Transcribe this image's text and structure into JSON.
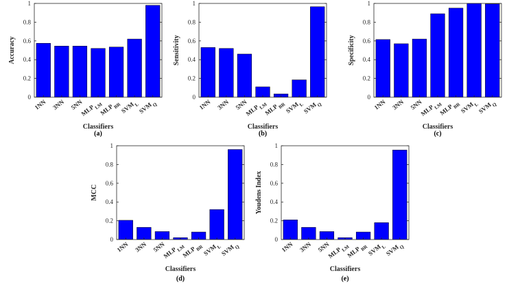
{
  "chart_data": [
    {
      "type": "bar",
      "id": "a",
      "categories": [
        {
          "main": "1NN",
          "sub": ""
        },
        {
          "main": "3NN",
          "sub": ""
        },
        {
          "main": "5NN",
          "sub": ""
        },
        {
          "main": "MLP",
          "sub": "LM"
        },
        {
          "main": "MLP",
          "sub": "BR"
        },
        {
          "main": "SVM",
          "sub": "L"
        },
        {
          "main": "SVM",
          "sub": "Q"
        }
      ],
      "values": [
        0.575,
        0.545,
        0.545,
        0.52,
        0.535,
        0.62,
        0.98
      ],
      "xlabel": "Classifiers",
      "ylabel": "Accuracy",
      "ylim": [
        0,
        1
      ],
      "yticks": [
        "0",
        "0.2",
        "0.4",
        "0.6",
        "0.8",
        "1"
      ],
      "panel_label": "(a)",
      "color": "#0000ff"
    },
    {
      "type": "bar",
      "id": "b",
      "categories": [
        {
          "main": "1NN",
          "sub": ""
        },
        {
          "main": "3NN",
          "sub": ""
        },
        {
          "main": "5NN",
          "sub": ""
        },
        {
          "main": "MLP",
          "sub": "LM"
        },
        {
          "main": "MLP",
          "sub": "BR"
        },
        {
          "main": "SVM",
          "sub": "L"
        },
        {
          "main": "SVM",
          "sub": "Q"
        }
      ],
      "values": [
        0.53,
        0.52,
        0.46,
        0.11,
        0.035,
        0.185,
        0.965
      ],
      "xlabel": "Classifiers",
      "ylabel": "Sensitivity",
      "ylim": [
        0,
        1
      ],
      "yticks": [
        "0",
        "0.2",
        "0.4",
        "0.6",
        "0.8",
        "1"
      ],
      "panel_label": "(b)",
      "color": "#0000ff"
    },
    {
      "type": "bar",
      "id": "c",
      "categories": [
        {
          "main": "1NN",
          "sub": ""
        },
        {
          "main": "3NN",
          "sub": ""
        },
        {
          "main": "5NN",
          "sub": ""
        },
        {
          "main": "MLP",
          "sub": "LM"
        },
        {
          "main": "MLP",
          "sub": "BR"
        },
        {
          "main": "SVM",
          "sub": "L"
        },
        {
          "main": "SVM",
          "sub": "Q"
        }
      ],
      "values": [
        0.615,
        0.57,
        0.62,
        0.89,
        0.95,
        1.0,
        0.995
      ],
      "xlabel": "Classifiers",
      "ylabel": "Specificity",
      "ylim": [
        0,
        1
      ],
      "yticks": [
        "0",
        "0.2",
        "0.4",
        "0.6",
        "0.8",
        "1"
      ],
      "panel_label": "(c)",
      "color": "#0000ff"
    },
    {
      "type": "bar",
      "id": "d",
      "categories": [
        {
          "main": "1NN",
          "sub": ""
        },
        {
          "main": "3NN",
          "sub": ""
        },
        {
          "main": "5NN",
          "sub": ""
        },
        {
          "main": "MLP",
          "sub": "LM"
        },
        {
          "main": "MLP",
          "sub": "BR"
        },
        {
          "main": "SVM",
          "sub": "L"
        },
        {
          "main": "SVM",
          "sub": "Q"
        }
      ],
      "values": [
        0.205,
        0.13,
        0.085,
        0.02,
        0.08,
        0.32,
        0.96
      ],
      "xlabel": "Classifiers",
      "ylabel": "MCC",
      "ylim": [
        0,
        1
      ],
      "yticks": [
        "0",
        "0.2",
        "0.4",
        "0.6",
        "0.8",
        "1"
      ],
      "panel_label": "(d)",
      "color": "#0000ff"
    },
    {
      "type": "bar",
      "id": "e",
      "categories": [
        {
          "main": "1NN",
          "sub": ""
        },
        {
          "main": "3NN",
          "sub": ""
        },
        {
          "main": "5NN",
          "sub": ""
        },
        {
          "main": "MLP",
          "sub": "LM"
        },
        {
          "main": "MLP",
          "sub": "BR"
        },
        {
          "main": "SVM",
          "sub": "L"
        },
        {
          "main": "SVM",
          "sub": "Q"
        }
      ],
      "values": [
        0.21,
        0.13,
        0.085,
        0.02,
        0.08,
        0.18,
        0.955
      ],
      "xlabel": "Classifiers",
      "ylabel": "Youdens Index",
      "ylim": [
        0,
        1
      ],
      "yticks": [
        "0",
        "0.2",
        "0.4",
        "0.6",
        "0.8",
        "1"
      ],
      "panel_label": "(e)",
      "color": "#0000ff"
    }
  ]
}
